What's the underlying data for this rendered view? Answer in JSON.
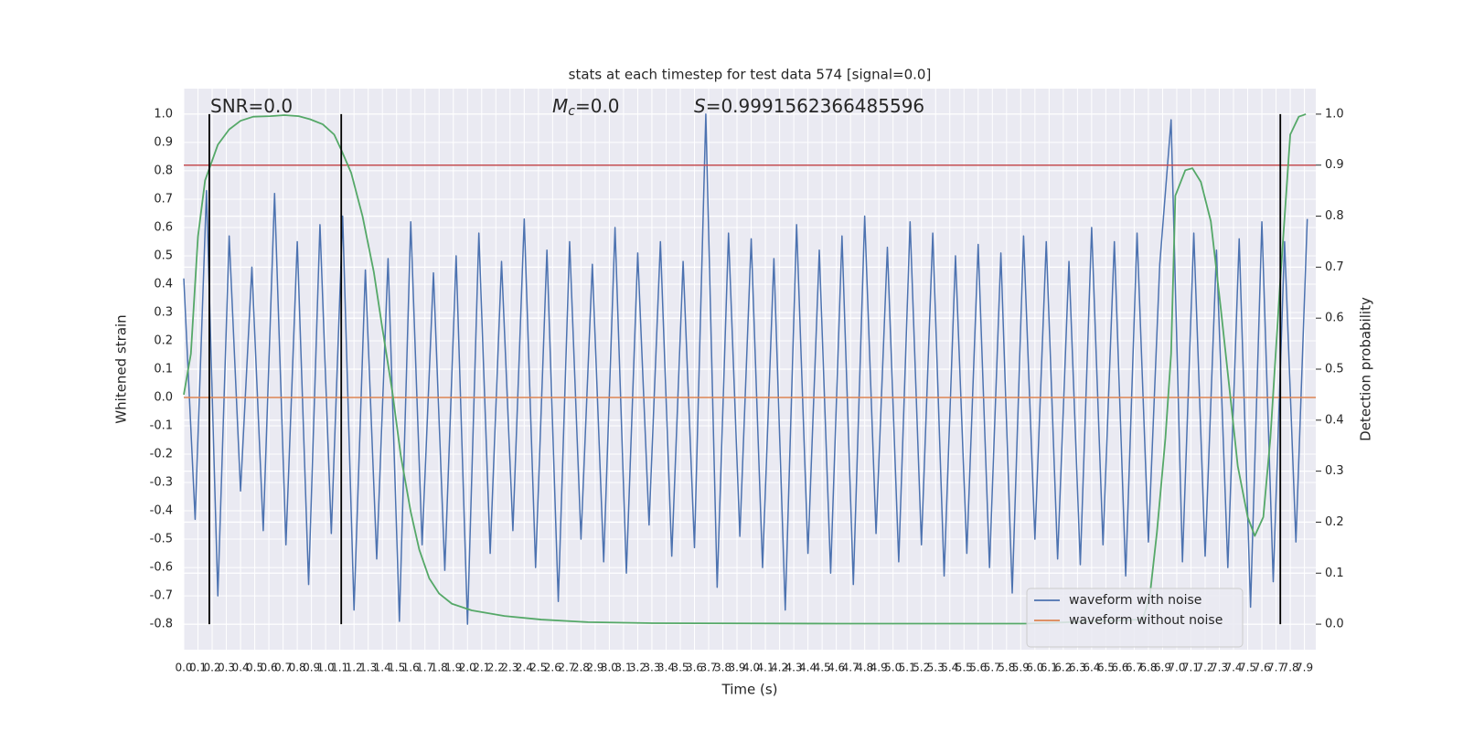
{
  "chart_data": {
    "type": "line",
    "title": "stats at each timestep for test data 574 [signal=0.0]",
    "x_label": "Time (s)",
    "y_label": "Whitened strain",
    "y2_label": "Detection probability",
    "annotations": [
      {
        "text": "SNR=0.0"
      },
      {
        "symbol": "M",
        "subscript": "c",
        "text": "=0.0"
      },
      {
        "symbol": "S",
        "text": "=0.9991562366485596"
      }
    ],
    "xlim": [
      0,
      7.98
    ],
    "ylim": [
      -0.89,
      1.09
    ],
    "y2lim": [
      -0.05,
      1.05
    ],
    "xticks": [
      {
        "value": 0,
        "label": "0.0"
      },
      0.1,
      0.2,
      0.3,
      0.4,
      0.5,
      0.6,
      0.7,
      0.8,
      0.9,
      {
        "value": 1,
        "label": "1.0"
      },
      1.1,
      1.2,
      1.3,
      1.4,
      1.5,
      1.6,
      1.7,
      1.8,
      1.9,
      {
        "value": 2,
        "label": "2.0"
      },
      2.1,
      2.2,
      2.3,
      2.4,
      2.5,
      2.6,
      2.7,
      2.8,
      2.9,
      {
        "value": 3,
        "label": "3.0"
      },
      3.1,
      3.2,
      3.3,
      3.4,
      3.5,
      3.6,
      3.7,
      3.8,
      3.9,
      {
        "value": 4,
        "label": "4.0"
      },
      4.1,
      4.2,
      4.3,
      4.4,
      4.5,
      4.6,
      4.7,
      4.8,
      4.9,
      {
        "value": 5,
        "label": "5.0"
      },
      5.1,
      5.2,
      5.3,
      5.4,
      5.5,
      5.6,
      5.7,
      5.8,
      5.9,
      {
        "value": 6,
        "label": "6.0"
      },
      6.1,
      6.2,
      6.3,
      6.4,
      6.5,
      6.6,
      6.7,
      6.8,
      6.9,
      {
        "value": 7,
        "label": "7.0"
      },
      7.1,
      7.2,
      7.3,
      7.4,
      7.5,
      7.6,
      7.7,
      7.8,
      7.9
    ],
    "yticks": [
      -0.8,
      -0.7,
      -0.6,
      -0.5,
      -0.4,
      -0.3,
      -0.2,
      -0.1,
      {
        "value": 0,
        "label": "0.0"
      },
      0.1,
      0.2,
      0.3,
      0.4,
      0.5,
      0.6,
      0.7,
      0.8,
      0.9,
      {
        "value": 1,
        "label": "1.0"
      }
    ],
    "y2ticks": [
      {
        "value": 0,
        "label": "0.0"
      },
      0.1,
      0.2,
      0.3,
      0.4,
      0.5,
      0.6,
      0.7,
      0.8,
      0.9,
      {
        "value": 1,
        "label": "1.0"
      }
    ],
    "grid": true,
    "legend": "lower right",
    "series": [
      {
        "name": "waveform with noise",
        "color": "#4c72b0",
        "x": [
          0,
          0.08,
          0.16,
          0.24,
          0.32,
          0.4,
          0.48,
          0.56,
          0.64,
          0.72,
          0.8,
          0.88,
          0.96,
          1.04,
          1.12,
          1.2,
          1.28,
          1.36,
          1.44,
          1.52,
          1.6,
          1.68,
          1.76,
          1.84,
          1.92,
          2,
          2.08,
          2.16,
          2.24,
          2.32,
          2.4,
          2.48,
          2.56,
          2.64,
          2.72,
          2.8,
          2.88,
          2.96,
          3.04,
          3.12,
          3.2,
          3.28,
          3.36,
          3.44,
          3.52,
          3.6,
          3.68,
          3.76,
          3.84,
          3.92,
          4,
          4.08,
          4.16,
          4.24,
          4.32,
          4.4,
          4.48,
          4.56,
          4.64,
          4.72,
          4.8,
          4.88,
          4.96,
          5.04,
          5.12,
          5.2,
          5.28,
          5.36,
          5.44,
          5.52,
          5.6,
          5.68,
          5.76,
          5.84,
          5.92,
          6,
          6.08,
          6.16,
          6.24,
          6.32,
          6.4,
          6.48,
          6.56,
          6.64,
          6.72,
          6.8,
          6.88,
          6.96,
          7.04,
          7.12,
          7.2,
          7.28,
          7.36,
          7.44,
          7.52,
          7.6,
          7.68,
          7.76,
          7.84,
          7.92
        ],
        "values": [
          0.42,
          -0.43,
          0.73,
          -0.7,
          0.57,
          -0.33,
          0.46,
          -0.47,
          0.72,
          -0.52,
          0.55,
          -0.66,
          0.61,
          -0.48,
          0.64,
          -0.75,
          0.45,
          -0.57,
          0.49,
          -0.79,
          0.62,
          -0.52,
          0.44,
          -0.61,
          0.5,
          -0.8,
          0.58,
          -0.55,
          0.48,
          -0.47,
          0.63,
          -0.6,
          0.52,
          -0.72,
          0.55,
          -0.5,
          0.47,
          -0.58,
          0.6,
          -0.62,
          0.51,
          -0.45,
          0.55,
          -0.56,
          0.48,
          -0.53,
          1.0,
          -0.67,
          0.58,
          -0.49,
          0.56,
          -0.6,
          0.49,
          -0.75,
          0.61,
          -0.55,
          0.52,
          -0.62,
          0.57,
          -0.66,
          0.64,
          -0.48,
          0.53,
          -0.58,
          0.62,
          -0.52,
          0.58,
          -0.63,
          0.5,
          -0.55,
          0.54,
          -0.6,
          0.51,
          -0.69,
          0.57,
          -0.5,
          0.55,
          -0.57,
          0.48,
          -0.59,
          0.6,
          -0.52,
          0.55,
          -0.63,
          0.58,
          -0.51,
          0.47,
          0.98,
          -0.58,
          0.58,
          -0.56,
          0.52,
          -0.6,
          0.56,
          -0.74,
          0.62,
          -0.65,
          0.55,
          -0.51,
          0.63
        ]
      },
      {
        "name": "waveform without noise",
        "color": "#dd8452",
        "x": [
          0,
          7.98
        ],
        "values": [
          0,
          0
        ]
      }
    ],
    "probability": {
      "color": "#55a868",
      "axis": "y2",
      "x": [
        0,
        0.05,
        0.1,
        0.15,
        0.24,
        0.32,
        0.4,
        0.49,
        0.61,
        0.71,
        0.81,
        0.89,
        0.98,
        1.06,
        1.11,
        1.18,
        1.26,
        1.34,
        1.4,
        1.47,
        1.53,
        1.6,
        1.66,
        1.73,
        1.8,
        1.89,
        2.03,
        2.26,
        2.52,
        2.85,
        3.31,
        4.63,
        5.94,
        6.76,
        6.81,
        6.86,
        6.92,
        6.96,
        6.99,
        7.06,
        7.11,
        7.17,
        7.24,
        7.31,
        7.38,
        7.43,
        7.5,
        7.55,
        7.61,
        7.66,
        7.73,
        7.8,
        7.86,
        7.91
      ],
      "values": [
        0.45,
        0.53,
        0.76,
        0.87,
        0.94,
        0.97,
        0.987,
        0.995,
        0.996,
        0.998,
        0.996,
        0.99,
        0.98,
        0.96,
        0.93,
        0.885,
        0.8,
        0.69,
        0.58,
        0.456,
        0.33,
        0.22,
        0.146,
        0.09,
        0.06,
        0.04,
        0.027,
        0.016,
        0.009,
        0.004,
        0.002,
        0.001,
        0.001,
        0.009,
        0.055,
        0.18,
        0.365,
        0.53,
        0.84,
        0.89,
        0.894,
        0.867,
        0.79,
        0.62,
        0.44,
        0.31,
        0.21,
        0.173,
        0.21,
        0.365,
        0.675,
        0.96,
        0.995,
        1.0
      ]
    },
    "threshold": {
      "value": 0.9,
      "axis": "y2",
      "color": "#c44e52"
    },
    "vlines": [
      0.18,
      1.11,
      7.73
    ],
    "vline_span": [
      -0.8,
      1.0
    ],
    "vline_color": "#000000"
  }
}
